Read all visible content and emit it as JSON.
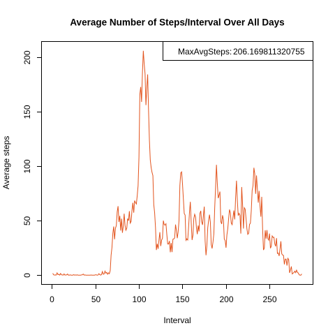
{
  "chart_data": {
    "type": "line",
    "title": "Average Number of Steps/Interval Over All Days",
    "xlabel": "Interval",
    "ylabel": "Average steps",
    "xlim": [
      -11.5,
      299.5
    ],
    "ylim": [
      -8.2,
      214.4
    ],
    "x_ticks": [
      0,
      50,
      100,
      150,
      200,
      250
    ],
    "y_ticks": [
      0,
      50,
      100,
      150,
      200
    ],
    "line_color": "#e2531d",
    "legend": {
      "position": "top-right",
      "label": "MaxAvgSteps:",
      "value": "206.169811320755"
    },
    "series": [
      {
        "values": [
          1.7,
          0.3,
          0.1,
          0.2,
          0.1,
          2.1,
          0.5,
          0.8,
          0.0,
          1.5,
          0.3,
          0.2,
          0.0,
          1.1,
          0.0,
          0.2,
          0.2,
          1.0,
          0.0,
          0.0,
          0.3,
          0.0,
          0.0,
          0.0,
          0.4,
          0.0,
          0.2,
          0.0,
          0.3,
          0.0,
          0.0,
          0.0,
          0.0,
          0.2,
          0.3,
          1.0,
          0.0,
          0.2,
          0.0,
          0.0,
          0.0,
          0.0,
          0.0,
          0.0,
          0.1,
          0.0,
          0.0,
          0.0,
          0.0,
          0.3,
          0.3,
          0.0,
          0.1,
          1.3,
          0.5,
          0.0,
          0.5,
          3.3,
          0.8,
          1.1,
          3.7,
          1.8,
          2.5,
          0.8,
          2.1,
          1.3,
          4.2,
          18.3,
          25.4,
          38.5,
          44.7,
          33.0,
          43.1,
          45.5,
          58.2,
          63.4,
          48.9,
          54.5,
          41.0,
          51.9,
          38.9,
          45.0,
          56.5,
          45.8,
          41.3,
          43.2,
          52.0,
          50.1,
          58.8,
          47.8,
          49.4,
          59.7,
          66.5,
          57.4,
          68.5,
          66.6,
          65.4,
          73.0,
          82.2,
          108.3,
          166.0,
          173.0,
          159.2,
          186.1,
          206.2,
          194.3,
          185.1,
          156.3,
          172.0,
          184.5,
          151.6,
          124.0,
          105.9,
          98.9,
          94.5,
          91.5,
          64.9,
          57.3,
          43.7,
          23.1,
          28.8,
          24.2,
          32.4,
          39.5,
          26.7,
          32.2,
          33.9,
          50.1,
          46.4,
          46.0,
          47.2,
          37.4,
          28.6,
          28.6,
          31.4,
          21.0,
          29.5,
          21.2,
          33.0,
          33.3,
          34.2,
          46.5,
          41.2,
          33.9,
          39.8,
          50.3,
          82.4,
          93.9,
          94.9,
          84.0,
          70.2,
          56.6,
          55.2,
          32.0,
          33.4,
          32.3,
          44.2,
          57.4,
          67.4,
          48.5,
          32.3,
          36.7,
          51.8,
          55.9,
          53.6,
          43.6,
          37.6,
          45.6,
          40.2,
          56.6,
          59.1,
          49.1,
          46.2,
          54.9,
          63.0,
          31.4,
          18.3,
          27.2,
          43.5,
          50.4,
          55.6,
          48.8,
          28.2,
          24.5,
          30.3,
          37.9,
          61.8,
          80.7,
          101.4,
          84.2,
          70.7,
          73.6,
          76.8,
          49.3,
          47.0,
          55.0,
          51.2,
          33.1,
          31.8,
          25.2,
          36.9,
          42.7,
          52.0,
          60.3,
          57.3,
          47.9,
          46.4,
          53.1,
          59.4,
          51.2,
          71.2,
          86.8,
          68.7,
          54.7,
          56.8,
          55.0,
          38.2,
          81.0,
          65.0,
          42.8,
          62.0,
          60.6,
          51.7,
          42.4,
          37.5,
          38.6,
          46.6,
          47.8,
          59.3,
          77.8,
          82.3,
          98.7,
          93.1,
          74.7,
          91.6,
          79.4,
          66.6,
          77.4,
          63.8,
          53.7,
          72.0,
          42.7,
          23.1,
          24.8,
          41.3,
          33.5,
          41.4,
          33.7,
          32.2,
          38.2,
          24.7,
          26.7,
          36.0,
          34.7,
          34.8,
          28.7,
          26.5,
          34.0,
          20.0,
          20.4,
          17.6,
          24.1,
          31.1,
          19.6,
          18.5,
          18.1,
          9.9,
          14.7,
          14.7,
          8.8,
          15.4,
          14.2,
          2.1,
          4.8,
          8.0,
          1.1,
          1.8,
          2.4,
          3.7,
          2.3,
          4.6,
          2.5,
          1.9,
          0.3,
          0.0,
          0.0,
          1.1
        ]
      }
    ]
  }
}
